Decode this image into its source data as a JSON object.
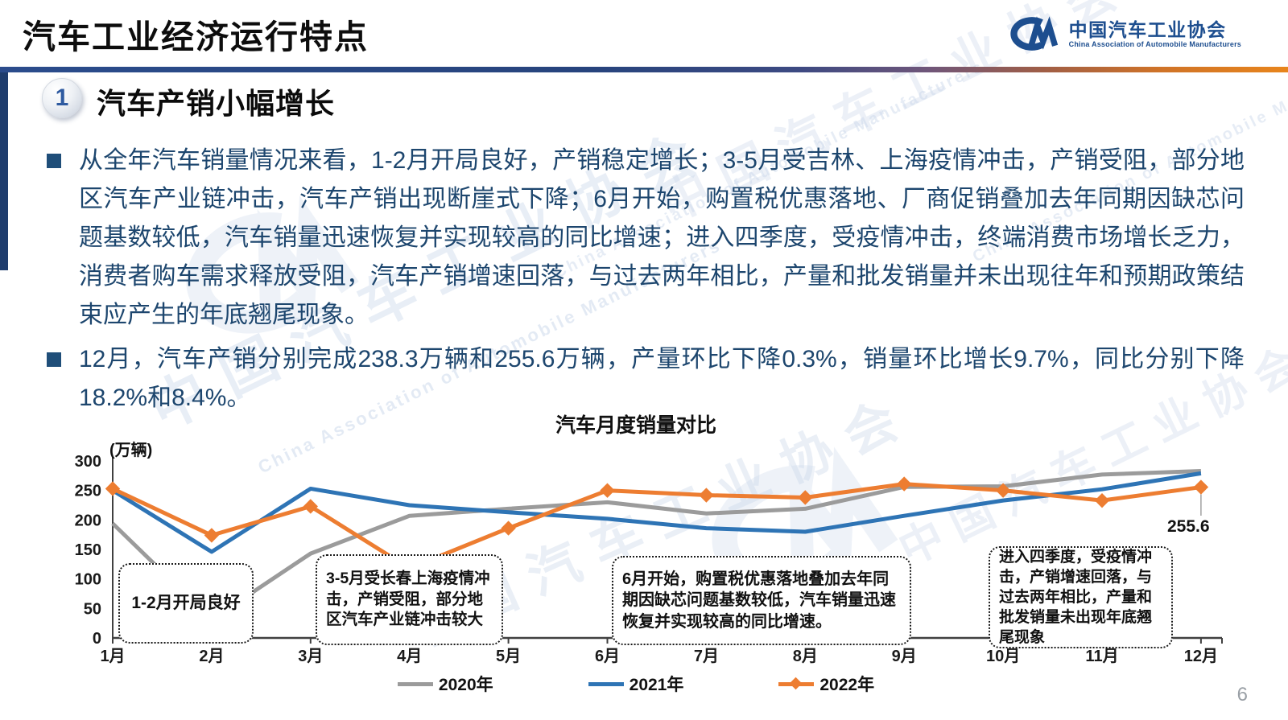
{
  "page": {
    "title": "汽车工业经济运行特点",
    "page_number": "6"
  },
  "logo": {
    "cn": "中国汽车工业协会",
    "en": "China Association of Automobile Manufacturers"
  },
  "section": {
    "number": "1",
    "title": "汽车产销小幅增长"
  },
  "bullets": [
    "从全年汽车销量情况来看，1-2月开局良好，产销稳定增长；3-5月受吉林、上海疫情冲击，产销受阻，部分地区汽车产业链冲击，汽车产销出现断崖式下降；6月开始，购置税优惠落地、厂商促销叠加去年同期因缺芯问题基数较低，汽车销量迅速恢复并实现较高的同比增速；进入四季度，受疫情冲击，终端消费市场增长乏力，消费者购车需求释放受阻，汽车产销增速回落，与过去两年相比，产量和批发销量并未出现往年和预期政策结束应产生的年底翘尾现象。",
    "12月，汽车产销分别完成238.3万辆和255.6万辆，产量环比下降0.3%，销量环比增长9.7%，同比分别下降18.2%和8.4%。"
  ],
  "chart_data": {
    "type": "line",
    "title": "汽车月度销量对比",
    "ylabel": "(万辆)",
    "ylim": [
      0,
      300
    ],
    "yticks": [
      0,
      50,
      100,
      150,
      200,
      250,
      300
    ],
    "grid": false,
    "legend_position": "bottom",
    "categories": [
      "1月",
      "2月",
      "3月",
      "4月",
      "5月",
      "6月",
      "7月",
      "8月",
      "9月",
      "10月",
      "11月",
      "12月"
    ],
    "series": [
      {
        "name": "2020年",
        "color": "#9b9b9b",
        "marker": "none",
        "values": [
          194,
          31,
          143,
          207,
          219,
          230,
          211,
          219,
          256,
          257,
          277,
          283
        ]
      },
      {
        "name": "2021年",
        "color": "#2e74b5",
        "marker": "none",
        "values": [
          250,
          146,
          253,
          225,
          213,
          202,
          186,
          180,
          207,
          233,
          252,
          279
        ]
      },
      {
        "name": "2022年",
        "color": "#ed7d31",
        "marker": "diamond",
        "values": [
          253,
          174,
          223,
          118,
          186,
          250,
          242,
          238,
          261,
          250,
          233,
          255.6
        ]
      }
    ],
    "end_label": "255.6",
    "annotations": [
      {
        "text": "1-2月开局良好"
      },
      {
        "text": "3-5月受长春上海疫情冲击，产销受阻，部分地区汽车产业链冲击较大"
      },
      {
        "text": "6月开始，购置税优惠落地叠加去年同期因缺芯问题基数较低，汽车销量迅速恢复并实现较高的同比增速。"
      },
      {
        "text": "进入四季度，受疫情冲击，产销增速回落，与过去两年相比，产量和批发销量未出现年底翘尾现象"
      }
    ]
  },
  "watermark": {
    "cn": "中国汽车工业协会",
    "en": "China Association of Automobile Manufacturers"
  }
}
